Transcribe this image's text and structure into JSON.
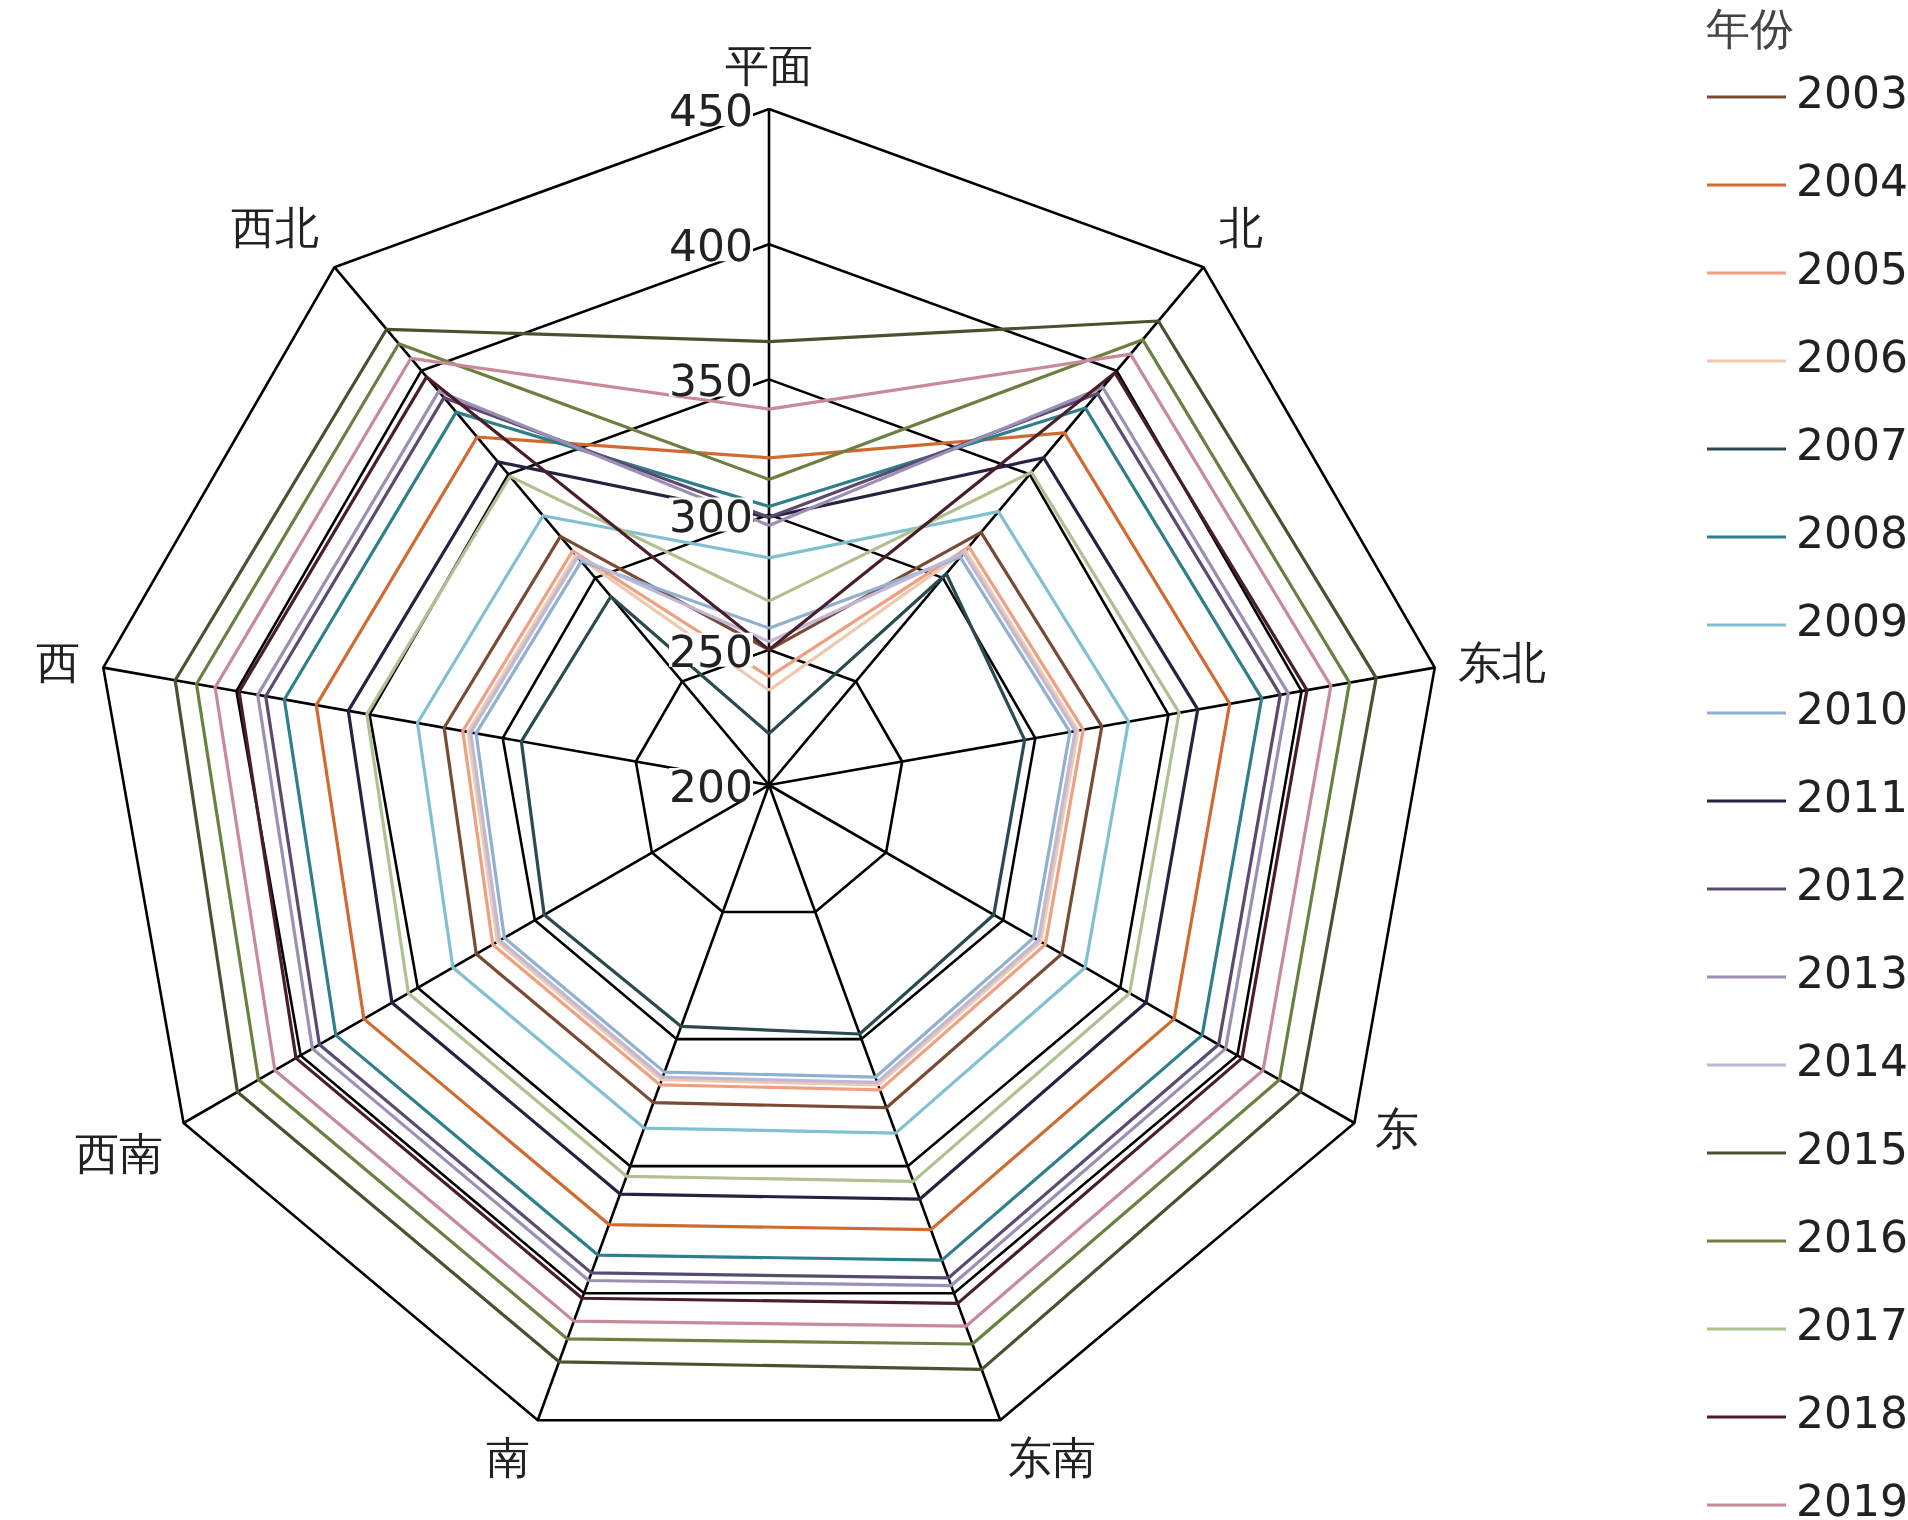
{
  "chart_data": {
    "type": "radar",
    "categories": [
      "平面",
      "北",
      "东北",
      "东",
      "东南",
      "南",
      "西南",
      "西",
      "西北"
    ],
    "ylim": [
      200,
      450
    ],
    "yticks": [
      200,
      250,
      300,
      350,
      400,
      450
    ],
    "grid": true,
    "legend": "right",
    "legend_title": "年份",
    "series": [
      {
        "name": "2003",
        "color": "#7a4a35",
        "values": [
          250,
          322,
          325,
          325,
          327,
          325,
          325,
          322,
          320
        ]
      },
      {
        "name": "2004",
        "color": "#d06a30",
        "values": [
          321,
          370,
          373,
          373,
          375,
          373,
          373,
          370,
          368
        ]
      },
      {
        "name": "2005",
        "color": "#f0a080",
        "values": [
          240,
          315,
          318,
          318,
          320,
          318,
          318,
          315,
          313
        ]
      },
      {
        "name": "2006",
        "color": "#f0c8b0",
        "values": [
          235,
          313,
          316,
          316,
          318,
          316,
          316,
          313,
          311
        ]
      },
      {
        "name": "2007",
        "color": "#2a4a50",
        "values": [
          219,
          302,
          296,
          296,
          298,
          295,
          296,
          293,
          291
        ]
      },
      {
        "name": "2008",
        "color": "#2f7f8a",
        "values": [
          303,
          382,
          385,
          385,
          387,
          385,
          385,
          382,
          380
        ]
      },
      {
        "name": "2009",
        "color": "#80c0d0",
        "values": [
          284,
          332,
          335,
          335,
          337,
          335,
          335,
          332,
          330
        ]
      },
      {
        "name": "2010",
        "color": "#90b0d0",
        "values": [
          258,
          310,
          313,
          313,
          315,
          313,
          313,
          310,
          308
        ]
      },
      {
        "name": "2011",
        "color": "#2a2040",
        "values": [
          299,
          358,
          361,
          361,
          363,
          361,
          361,
          358,
          356
        ]
      },
      {
        "name": "2012",
        "color": "#5a4a70",
        "values": [
          299,
          389,
          392,
          392,
          394,
          392,
          392,
          389,
          387
        ]
      },
      {
        "name": "2013",
        "color": "#9b8fb5",
        "values": [
          296,
          392,
          395,
          395,
          397,
          395,
          395,
          392,
          390
        ]
      },
      {
        "name": "2014",
        "color": "#c0b8d8",
        "values": [
          253,
          312,
          315,
          315,
          317,
          315,
          315,
          312,
          310
        ]
      },
      {
        "name": "2015",
        "color": "#4a5030",
        "values": [
          364,
          424,
          428,
          427,
          430,
          427,
          427,
          423,
          420
        ]
      },
      {
        "name": "2016",
        "color": "#6b8040",
        "values": [
          313,
          415,
          418,
          418,
          420,
          418,
          418,
          415,
          413
        ]
      },
      {
        "name": "2017",
        "color": "#b0c090",
        "values": [
          268,
          351,
          354,
          354,
          356,
          354,
          354,
          351,
          349
        ]
      },
      {
        "name": "2018",
        "color": "#4a1e28",
        "values": [
          250,
          399,
          402,
          402,
          404,
          402,
          402,
          399,
          397
        ]
      },
      {
        "name": "2019",
        "color": "#c88a98",
        "values": [
          339,
          408,
          411,
          411,
          413,
          411,
          411,
          408,
          406
        ]
      }
    ]
  }
}
